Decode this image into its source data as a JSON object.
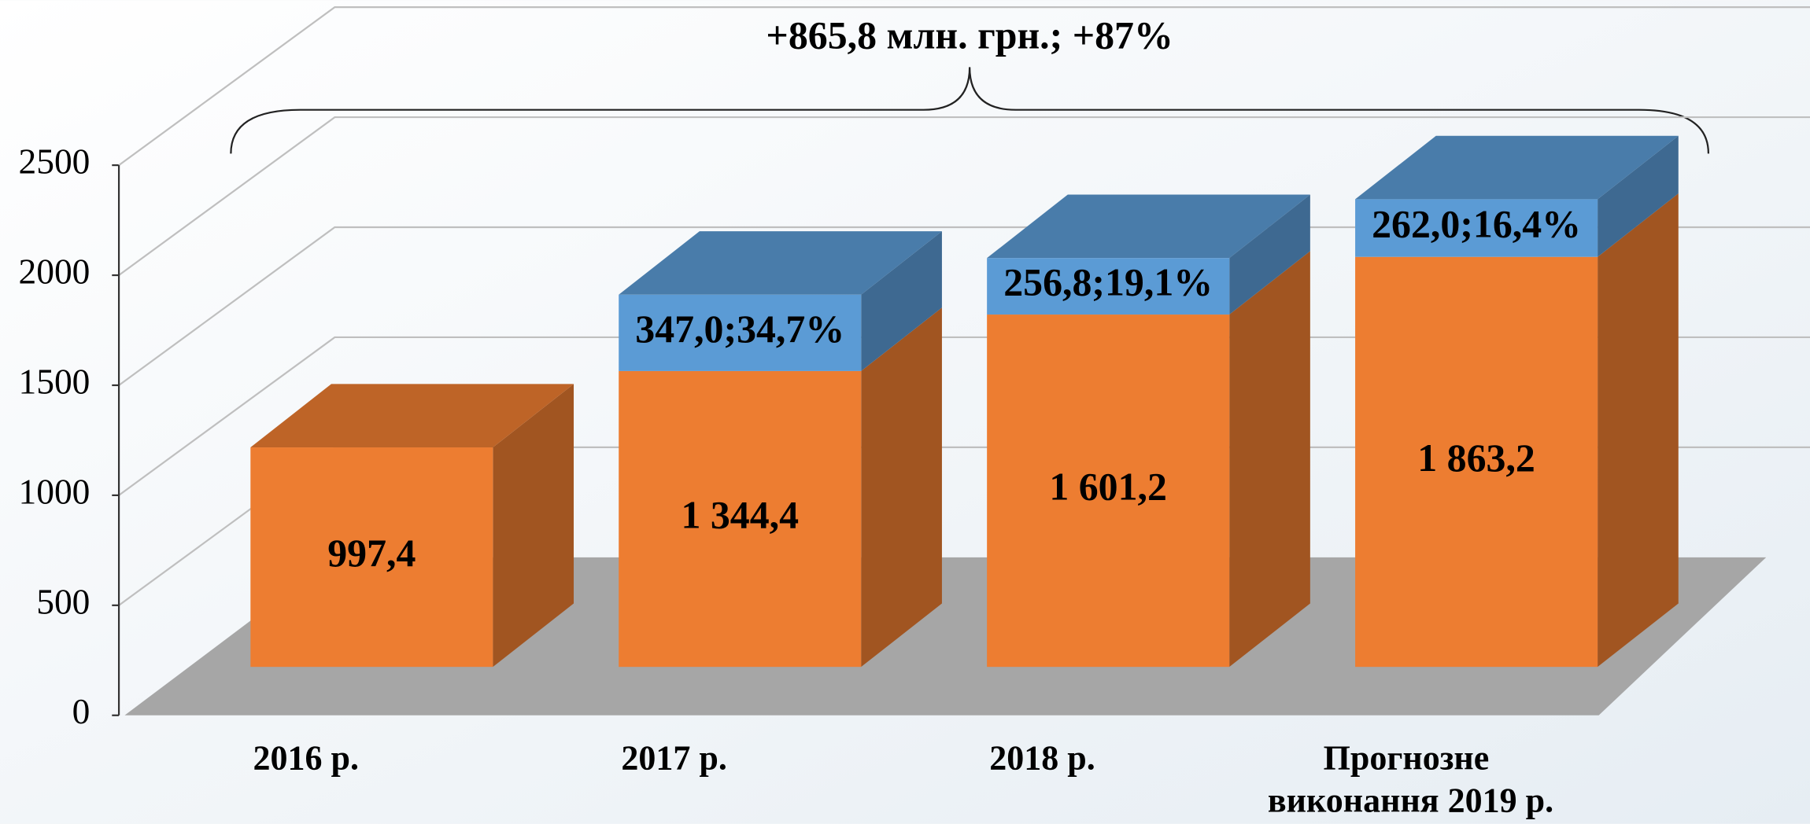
{
  "chart_data": {
    "type": "bar3d_stacked",
    "annotation": "+865,8 млн. грн.; +87%",
    "categories": [
      "2016 р.",
      "2017 р.",
      "2018 р.",
      "Прогнозне виконання 2019 р."
    ],
    "series": [
      {
        "color": "#ED7D31",
        "values": [
          997.4,
          1344.4,
          1601.2,
          1863.2
        ],
        "value_labels": [
          "997,4",
          "1 344,4",
          "1 601,2",
          "1 863,2"
        ]
      },
      {
        "color": "#5B9BD5",
        "values": [
          null,
          347.0,
          256.8,
          262.0
        ],
        "value_labels": [
          null,
          "347,0;34,7%",
          "256,8;19,1%",
          "262,0;16,4%"
        ]
      }
    ],
    "ylim": [
      0,
      2500
    ],
    "yticks": [
      0,
      500,
      1000,
      1500,
      2000,
      2500
    ],
    "grid": true
  }
}
